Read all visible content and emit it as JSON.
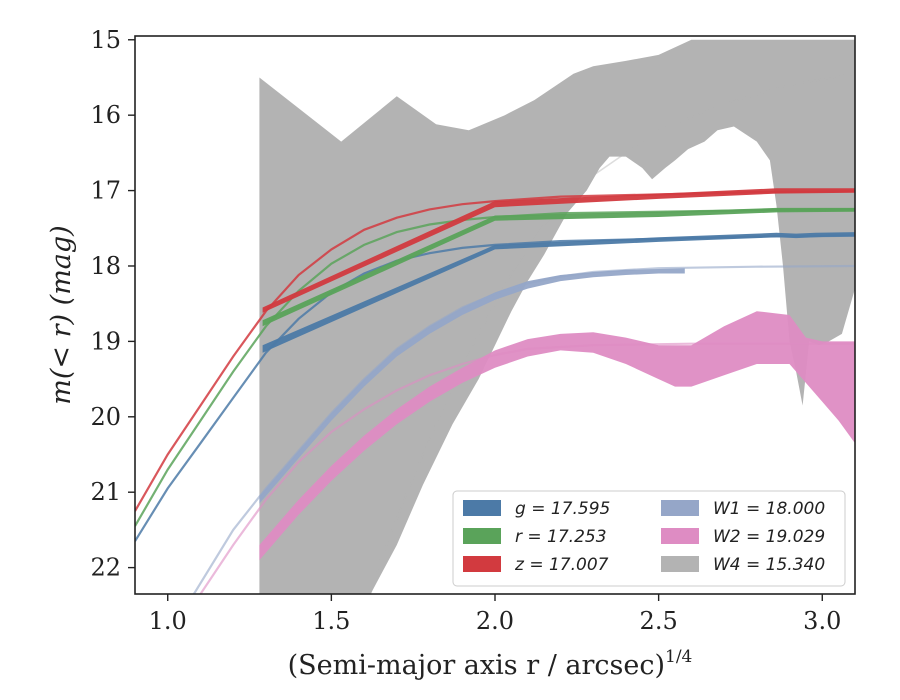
{
  "chart_data": {
    "type": "line",
    "xlabel": "(Semi-major axis r / arcsec)",
    "xlabel_exponent": "1/4",
    "ylabel": "m(< r) (mag)",
    "xlim": [
      0.9,
      3.1
    ],
    "ylim": [
      22.35,
      14.95
    ],
    "y_inverted": true,
    "xticks": [
      "1.0",
      "1.5",
      "2.0",
      "2.5",
      "3.0"
    ],
    "yticks": [
      "15",
      "16",
      "17",
      "18",
      "19",
      "20",
      "21",
      "22"
    ],
    "legend_position": "lower-right",
    "legend": [
      {
        "band": "g",
        "label": "g = 17.595",
        "color": "#4c7aa7"
      },
      {
        "band": "r",
        "label": "r = 17.253",
        "color": "#5aa35a"
      },
      {
        "band": "z",
        "label": "z = 17.007",
        "color": "#d23a3f"
      },
      {
        "band": "W1",
        "label": "W1 = 18.000",
        "color": "#95a6c8"
      },
      {
        "band": "W2",
        "label": "W2 = 19.029",
        "color": "#de8cc3"
      },
      {
        "band": "W4",
        "label": "W4 = 15.340",
        "color": "#b3b3b3"
      }
    ],
    "series": [
      {
        "name": "W4",
        "color": "#b3b3b3",
        "band_upper": [
          [
            1.28,
            15.5
          ],
          [
            1.53,
            16.35
          ],
          [
            1.7,
            15.75
          ],
          [
            1.82,
            16.12
          ],
          [
            1.92,
            16.2
          ],
          [
            2.03,
            16.0
          ],
          [
            2.12,
            15.8
          ],
          [
            2.24,
            15.45
          ],
          [
            2.3,
            15.35
          ],
          [
            2.4,
            15.28
          ],
          [
            2.5,
            15.2
          ],
          [
            2.6,
            15.0
          ],
          [
            3.1,
            15.0
          ]
        ],
        "band_lower": [
          [
            1.28,
            22.35
          ],
          [
            1.62,
            22.35
          ],
          [
            1.7,
            21.7
          ],
          [
            1.78,
            20.9
          ],
          [
            1.87,
            20.1
          ],
          [
            1.95,
            19.5
          ],
          [
            2.0,
            19.05
          ],
          [
            2.05,
            18.6
          ],
          [
            2.1,
            18.2
          ],
          [
            2.15,
            17.85
          ],
          [
            2.22,
            17.3
          ],
          [
            2.28,
            17.0
          ],
          [
            2.32,
            16.7
          ],
          [
            2.35,
            16.55
          ],
          [
            2.4,
            16.55
          ],
          [
            2.45,
            16.7
          ],
          [
            2.48,
            16.85
          ],
          [
            2.52,
            16.7
          ],
          [
            2.55,
            16.6
          ],
          [
            2.59,
            16.45
          ],
          [
            2.64,
            16.35
          ],
          [
            2.68,
            16.2
          ],
          [
            2.73,
            16.15
          ],
          [
            2.8,
            16.35
          ],
          [
            2.84,
            16.6
          ],
          [
            2.86,
            17.2
          ],
          [
            2.88,
            18.0
          ],
          [
            2.9,
            19.0
          ],
          [
            2.92,
            19.4
          ],
          [
            2.94,
            19.85
          ],
          [
            2.96,
            19.0
          ],
          [
            2.99,
            19.05
          ],
          [
            3.02,
            19.0
          ],
          [
            3.06,
            18.9
          ],
          [
            3.1,
            18.3
          ]
        ],
        "model": [
          [
            1.62,
            22.35
          ],
          [
            1.65,
            21.9
          ],
          [
            1.75,
            20.8
          ],
          [
            1.85,
            19.8
          ],
          [
            1.95,
            18.9
          ],
          [
            2.05,
            18.1
          ],
          [
            2.15,
            17.45
          ],
          [
            2.3,
            16.8
          ],
          [
            2.5,
            16.2
          ],
          [
            2.7,
            15.85
          ],
          [
            2.9,
            15.6
          ],
          [
            3.1,
            15.45
          ]
        ]
      },
      {
        "name": "W2",
        "color": "#de8cc3",
        "band_upper": [
          [
            1.28,
            21.7
          ],
          [
            1.4,
            21.1
          ],
          [
            1.5,
            20.65
          ],
          [
            1.6,
            20.25
          ],
          [
            1.7,
            19.9
          ],
          [
            1.8,
            19.6
          ],
          [
            1.9,
            19.35
          ],
          [
            2.0,
            19.12
          ],
          [
            2.1,
            18.97
          ],
          [
            2.2,
            18.9
          ],
          [
            2.3,
            18.88
          ],
          [
            2.4,
            18.95
          ],
          [
            2.5,
            19.05
          ],
          [
            2.6,
            19.05
          ],
          [
            2.7,
            18.8
          ],
          [
            2.8,
            18.6
          ],
          [
            2.9,
            18.65
          ],
          [
            2.95,
            18.95
          ],
          [
            3.0,
            19.0
          ],
          [
            3.1,
            19.0
          ]
        ],
        "band_lower": [
          [
            1.28,
            21.9
          ],
          [
            1.4,
            21.3
          ],
          [
            1.5,
            20.85
          ],
          [
            1.6,
            20.45
          ],
          [
            1.7,
            20.1
          ],
          [
            1.8,
            19.8
          ],
          [
            1.9,
            19.55
          ],
          [
            2.0,
            19.35
          ],
          [
            2.1,
            19.2
          ],
          [
            2.2,
            19.12
          ],
          [
            2.3,
            19.15
          ],
          [
            2.4,
            19.3
          ],
          [
            2.5,
            19.5
          ],
          [
            2.55,
            19.6
          ],
          [
            2.6,
            19.6
          ],
          [
            2.7,
            19.45
          ],
          [
            2.8,
            19.3
          ],
          [
            2.9,
            19.3
          ],
          [
            2.95,
            19.55
          ],
          [
            3.0,
            19.8
          ],
          [
            3.05,
            20.05
          ],
          [
            3.1,
            20.35
          ]
        ],
        "model": [
          [
            1.1,
            22.35
          ],
          [
            1.2,
            21.7
          ],
          [
            1.3,
            21.1
          ],
          [
            1.4,
            20.6
          ],
          [
            1.5,
            20.2
          ],
          [
            1.6,
            19.9
          ],
          [
            1.7,
            19.65
          ],
          [
            1.8,
            19.45
          ],
          [
            1.9,
            19.3
          ],
          [
            2.0,
            19.18
          ],
          [
            2.1,
            19.1
          ],
          [
            2.3,
            19.05
          ],
          [
            2.6,
            19.03
          ],
          [
            3.1,
            19.03
          ]
        ]
      },
      {
        "name": "W1",
        "color": "#95a6c8",
        "band_upper": [
          [
            1.28,
            21.05
          ],
          [
            1.4,
            20.45
          ],
          [
            1.5,
            19.95
          ],
          [
            1.6,
            19.5
          ],
          [
            1.7,
            19.1
          ],
          [
            1.8,
            18.8
          ],
          [
            1.9,
            18.55
          ],
          [
            2.0,
            18.35
          ],
          [
            2.1,
            18.2
          ],
          [
            2.2,
            18.12
          ],
          [
            2.3,
            18.08
          ],
          [
            2.4,
            18.05
          ],
          [
            2.5,
            18.04
          ],
          [
            2.58,
            18.03
          ]
        ],
        "band_lower": [
          [
            1.28,
            21.15
          ],
          [
            1.4,
            20.55
          ],
          [
            1.5,
            20.05
          ],
          [
            1.6,
            19.6
          ],
          [
            1.7,
            19.2
          ],
          [
            1.8,
            18.9
          ],
          [
            1.9,
            18.65
          ],
          [
            2.0,
            18.45
          ],
          [
            2.1,
            18.3
          ],
          [
            2.2,
            18.2
          ],
          [
            2.3,
            18.15
          ],
          [
            2.4,
            18.12
          ],
          [
            2.5,
            18.1
          ],
          [
            2.58,
            18.1
          ]
        ],
        "model": [
          [
            1.08,
            22.35
          ],
          [
            1.2,
            21.5
          ],
          [
            1.3,
            20.95
          ],
          [
            1.4,
            20.45
          ],
          [
            1.5,
            19.95
          ],
          [
            1.6,
            19.5
          ],
          [
            1.7,
            19.1
          ],
          [
            1.8,
            18.8
          ],
          [
            1.9,
            18.55
          ],
          [
            2.0,
            18.37
          ],
          [
            2.1,
            18.23
          ],
          [
            2.2,
            18.14
          ],
          [
            2.3,
            18.08
          ],
          [
            2.5,
            18.03
          ],
          [
            2.8,
            18.01
          ],
          [
            3.1,
            18.0
          ]
        ]
      },
      {
        "name": "g",
        "color": "#4c7aa7",
        "band_upper": [
          [
            1.29,
            19.05
          ],
          [
            2.0,
            17.72
          ],
          [
            2.5,
            17.62
          ],
          [
            2.86,
            17.56
          ],
          [
            2.92,
            17.57
          ],
          [
            2.98,
            17.56
          ],
          [
            3.1,
            17.55
          ]
        ],
        "band_lower": [
          [
            1.29,
            19.15
          ],
          [
            2.0,
            17.78
          ],
          [
            2.5,
            17.68
          ],
          [
            2.86,
            17.62
          ],
          [
            2.92,
            17.63
          ],
          [
            2.98,
            17.62
          ],
          [
            3.1,
            17.6
          ]
        ],
        "model": [
          [
            0.9,
            21.65
          ],
          [
            1.0,
            20.95
          ],
          [
            1.1,
            20.35
          ],
          [
            1.2,
            19.75
          ],
          [
            1.3,
            19.15
          ],
          [
            1.4,
            18.7
          ],
          [
            1.5,
            18.35
          ],
          [
            1.6,
            18.1
          ],
          [
            1.7,
            17.93
          ],
          [
            1.8,
            17.83
          ],
          [
            1.9,
            17.76
          ],
          [
            2.0,
            17.72
          ],
          [
            2.2,
            17.67
          ],
          [
            2.5,
            17.64
          ],
          [
            2.8,
            17.61
          ],
          [
            3.1,
            17.6
          ]
        ]
      },
      {
        "name": "r",
        "color": "#5aa35a",
        "band_upper": [
          [
            1.29,
            18.72
          ],
          [
            2.0,
            17.33
          ],
          [
            2.5,
            17.28
          ],
          [
            2.86,
            17.23
          ],
          [
            3.1,
            17.23
          ]
        ],
        "band_lower": [
          [
            1.29,
            18.8
          ],
          [
            2.0,
            17.4
          ],
          [
            2.5,
            17.35
          ],
          [
            2.86,
            17.29
          ],
          [
            3.1,
            17.28
          ]
        ],
        "model": [
          [
            0.9,
            21.45
          ],
          [
            1.0,
            20.7
          ],
          [
            1.1,
            20.05
          ],
          [
            1.2,
            19.4
          ],
          [
            1.3,
            18.8
          ],
          [
            1.4,
            18.33
          ],
          [
            1.5,
            17.97
          ],
          [
            1.6,
            17.72
          ],
          [
            1.7,
            17.55
          ],
          [
            1.8,
            17.45
          ],
          [
            1.9,
            17.39
          ],
          [
            2.0,
            17.35
          ],
          [
            2.2,
            17.3
          ],
          [
            2.5,
            17.28
          ],
          [
            2.8,
            17.26
          ],
          [
            3.1,
            17.25
          ]
        ]
      },
      {
        "name": "z",
        "color": "#d23a3f",
        "band_upper": [
          [
            1.29,
            18.55
          ],
          [
            2.0,
            17.14
          ],
          [
            2.5,
            17.04
          ],
          [
            2.86,
            16.97
          ],
          [
            3.1,
            16.97
          ]
        ],
        "band_lower": [
          [
            1.29,
            18.62
          ],
          [
            2.0,
            17.22
          ],
          [
            2.5,
            17.11
          ],
          [
            2.86,
            17.04
          ],
          [
            3.1,
            17.03
          ]
        ],
        "model": [
          [
            0.9,
            21.25
          ],
          [
            1.0,
            20.5
          ],
          [
            1.1,
            19.85
          ],
          [
            1.2,
            19.2
          ],
          [
            1.3,
            18.6
          ],
          [
            1.4,
            18.12
          ],
          [
            1.5,
            17.78
          ],
          [
            1.6,
            17.52
          ],
          [
            1.7,
            17.36
          ],
          [
            1.8,
            17.25
          ],
          [
            1.9,
            17.18
          ],
          [
            2.0,
            17.14
          ],
          [
            2.2,
            17.08
          ],
          [
            2.5,
            17.05
          ],
          [
            2.8,
            17.02
          ],
          [
            3.1,
            17.01
          ]
        ]
      }
    ]
  }
}
